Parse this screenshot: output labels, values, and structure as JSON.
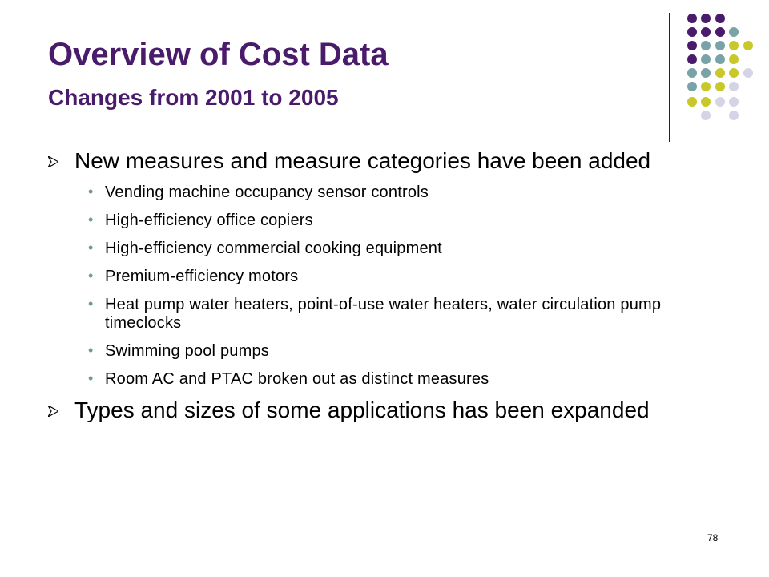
{
  "slide": {
    "title": "Overview of Cost Data",
    "subtitle": "Changes from 2001 to 2005",
    "page_number": "78"
  },
  "bullets": [
    {
      "text": "New measures and measure categories have been added",
      "sub_items": [
        "Vending machine occupancy sensor controls",
        "High-efficiency office copiers",
        "High-efficiency commercial cooking equipment",
        "Premium-efficiency motors",
        "Heat pump water heaters, point-of-use water heaters, water circulation pump timeclocks",
        "Swimming pool pumps",
        "Room AC and PTAC broken out as distinct measures"
      ]
    },
    {
      "text": "Types and sizes of some applications has been expanded",
      "sub_items": []
    }
  ],
  "colors": {
    "title": "#4a1a6b",
    "dot_purple": "#4a1a6b",
    "dot_teal": "#79a3a6",
    "dot_yellow": "#c8c82a",
    "dot_lavender": "#d4d4e6",
    "sub_bullet": "#6a9a9c"
  }
}
